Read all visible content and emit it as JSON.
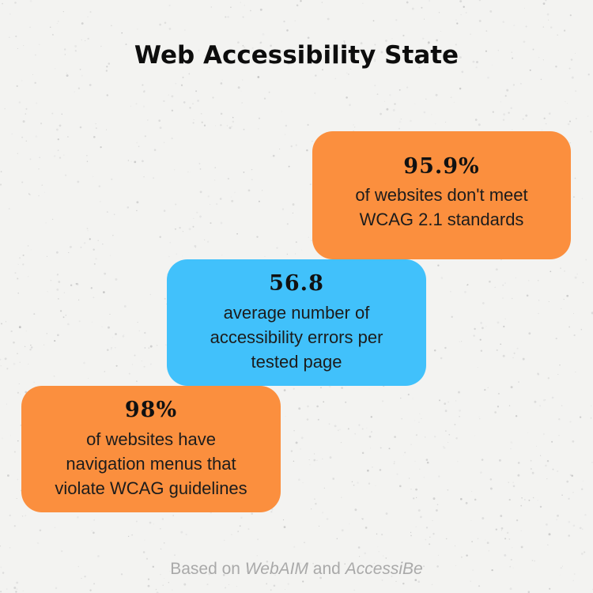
{
  "title": "Web Accessibility State",
  "stats": [
    {
      "value": "95.9%",
      "description_lines": [
        "of websites don't meet",
        "WCAG 2.1 standards"
      ],
      "color": "#fb8f3e"
    },
    {
      "value": "56.8",
      "description_lines": [
        "average number of",
        "accessibility errors per",
        "tested page"
      ],
      "color": "#41c1fb"
    },
    {
      "value": "98%",
      "description_lines": [
        "of websites have",
        "navigation menus that",
        "violate WCAG guidelines"
      ],
      "color": "#fb8f3e"
    }
  ],
  "footer": {
    "prefix": "Based on ",
    "source1": "WebAIM",
    "conjunction": " and ",
    "source2": "AccessiBe"
  },
  "colors": {
    "background": "#f3f3f1",
    "orange": "#fb8f3e",
    "blue": "#41c1fb",
    "footer_text": "#a9a9a9"
  }
}
